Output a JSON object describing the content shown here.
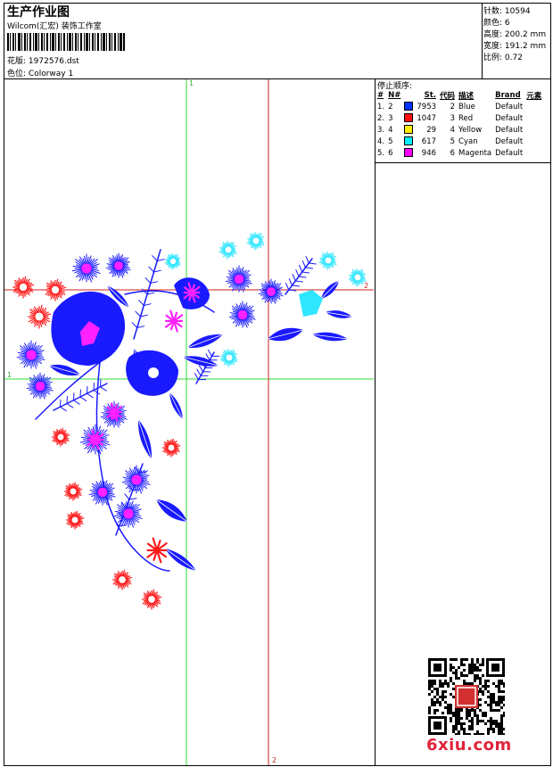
{
  "header": {
    "title": "生产作业图",
    "company": "Wilcom(汇宏) 装饰工作室",
    "file_label": "花版:",
    "file_name": "1972576.dst",
    "colorway_label": "色位:",
    "colorway_name": "Colorway 1"
  },
  "stats": [
    {
      "label": "针数:",
      "value": "10594"
    },
    {
      "label": "颜色:",
      "value": "6"
    },
    {
      "label": "高度:",
      "value": "200.2 mm"
    },
    {
      "label": "宽度:",
      "value": "191.2 mm"
    },
    {
      "label": "比例:",
      "value": "0.72"
    }
  ],
  "stop_sequence": {
    "title": "停止顺序:",
    "headers": [
      "#",
      "N#",
      "St.",
      "代码",
      "描述",
      "Brand",
      "元素"
    ],
    "rows": [
      {
        "idx": "1.",
        "n": "2",
        "stitches": "7953",
        "code": "2",
        "desc": "Blue",
        "brand": "Default",
        "color": "#0033ff"
      },
      {
        "idx": "2.",
        "n": "3",
        "stitches": "1047",
        "code": "3",
        "desc": "Red",
        "brand": "Default",
        "color": "#ff1111"
      },
      {
        "idx": "3.",
        "n": "4",
        "stitches": "29",
        "code": "4",
        "desc": "Yellow",
        "brand": "Default",
        "color": "#ffee00"
      },
      {
        "idx": "4.",
        "n": "5",
        "stitches": "617",
        "code": "5",
        "desc": "Cyan",
        "brand": "Default",
        "color": "#00eeff"
      },
      {
        "idx": "5.",
        "n": "6",
        "stitches": "946",
        "code": "6",
        "desc": "Magenta",
        "brand": "Default",
        "color": "#ff00ff"
      }
    ]
  },
  "guides": {
    "green_label_top": "1",
    "green_label_left": "1",
    "red_label_right": "2",
    "red_label_bottom": "2"
  },
  "watermark": "6xiu.com",
  "colors": {
    "blue": "#1a1aff",
    "red": "#ff1a1a",
    "cyan": "#2ee6ff",
    "magenta": "#ff22ff",
    "green_guide": "#33dd33",
    "red_guide": "#cc2222"
  }
}
